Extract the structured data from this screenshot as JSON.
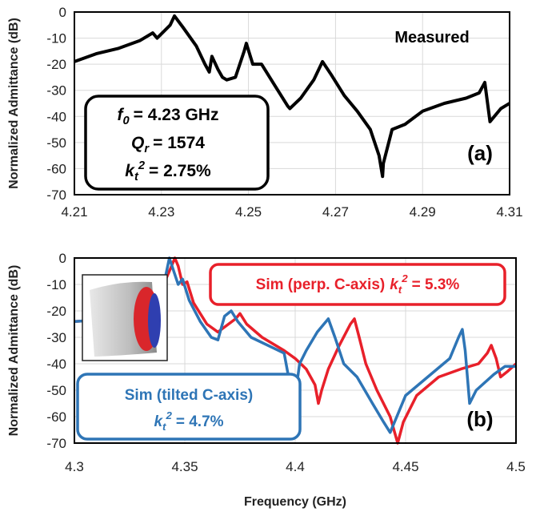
{
  "chart_data": [
    {
      "type": "line",
      "y_label": "Normalized Admittance (dB)",
      "annotations": {
        "measured": "Measured",
        "panel": "(a)",
        "params": [
          {
            "base": "f",
            "sub": "0",
            "value": "= 4.23 GHz"
          },
          {
            "base": "Q",
            "sub": "r",
            "value": "= 1574"
          },
          {
            "base": "k",
            "sub": "t",
            "sup": "2",
            "value": "= 2.75%"
          }
        ]
      },
      "color": "#000000",
      "x": [
        4.21,
        4.215,
        4.22,
        4.225,
        4.228,
        4.229,
        4.232,
        4.233,
        4.235,
        4.238,
        4.24,
        4.241,
        4.2416,
        4.243,
        4.244,
        4.245,
        4.247,
        4.249,
        4.2495,
        4.251,
        4.253,
        4.256,
        4.259,
        4.2595,
        4.262,
        4.265,
        4.267,
        4.269,
        4.272,
        4.275,
        4.278,
        4.28,
        4.2808,
        4.281,
        4.283,
        4.286,
        4.29,
        4.295,
        4.3,
        4.303,
        4.3043,
        4.3055,
        4.308,
        4.31
      ],
      "values": [
        -19,
        -16,
        -14,
        -11,
        -8,
        -10,
        -5,
        -1.5,
        -6,
        -13,
        -20,
        -23,
        -17,
        -22,
        -25,
        -26,
        -25,
        -15,
        -12,
        -20,
        -20,
        -28,
        -36,
        -37,
        -33,
        -26,
        -19,
        -24,
        -32,
        -38,
        -45,
        -55,
        -63,
        -58,
        -45,
        -43,
        -38,
        -35,
        -33,
        -31,
        -27,
        -42,
        -37,
        -35
      ],
      "xlim": [
        4.21,
        4.31
      ],
      "xticks": [
        4.21,
        4.23,
        4.25,
        4.27,
        4.29,
        4.31
      ],
      "ylim": [
        -70,
        0
      ],
      "yticks": [
        -70,
        -60,
        -50,
        -40,
        -30,
        -20,
        -10,
        0
      ],
      "grid": true
    },
    {
      "type": "line",
      "y_label": "Normalized Admittance (dB)",
      "x_label": "Frequency (GHz)",
      "annotations": {
        "panel": "(b)"
      },
      "series": [
        {
          "name": "Sim (perp. C-axis)",
          "color": "#e8202a",
          "kt2_label": {
            "base": "k",
            "sub": "t",
            "sup": "2",
            "value": "= 5.3%"
          },
          "x": [
            4.3,
            4.32,
            4.335,
            4.343,
            4.3455,
            4.347,
            4.349,
            4.351,
            4.354,
            4.36,
            4.365,
            4.373,
            4.375,
            4.378,
            4.385,
            4.395,
            4.4,
            4.405,
            4.409,
            4.4105,
            4.412,
            4.415,
            4.42,
            4.425,
            4.4268,
            4.429,
            4.432,
            4.437,
            4.443,
            4.4464,
            4.449,
            4.455,
            4.465,
            4.475,
            4.483,
            4.487,
            4.4888,
            4.491,
            4.493,
            4.496,
            4.5
          ],
          "values": [
            -24,
            -23,
            -20,
            -5,
            0,
            -3,
            -10,
            -9,
            -17,
            -25,
            -28,
            -23,
            -21,
            -25,
            -30,
            -35,
            -38,
            -42,
            -48,
            -55,
            -50,
            -42,
            -33,
            -25,
            -23,
            -30,
            -40,
            -50,
            -60,
            -70,
            -62,
            -52,
            -45,
            -42,
            -40,
            -36,
            -33,
            -38,
            -45,
            -43,
            -40
          ]
        },
        {
          "name": "Sim (tilted C-axis)",
          "color": "#2e75b6",
          "kt2_label": {
            "base": "k",
            "sub": "t",
            "sup": "2",
            "value": "= 4.7%"
          },
          "x": [
            4.3,
            4.32,
            4.335,
            4.341,
            4.343,
            4.345,
            4.347,
            4.349,
            4.352,
            4.357,
            4.362,
            4.365,
            4.368,
            4.371,
            4.374,
            4.38,
            4.39,
            4.395,
            4.397,
            4.3985,
            4.4,
            4.402,
            4.405,
            4.41,
            4.415,
            4.418,
            4.422,
            4.428,
            4.435,
            4.44,
            4.443,
            4.446,
            4.45,
            4.46,
            4.47,
            4.474,
            4.4757,
            4.477,
            4.479,
            4.482,
            4.49,
            4.495,
            4.5
          ],
          "values": [
            -24,
            -23,
            -20,
            -8,
            0,
            -5,
            -10,
            -8,
            -16,
            -24,
            -30,
            -31,
            -22,
            -20,
            -24,
            -30,
            -34,
            -36,
            -45,
            -58,
            -52,
            -40,
            -35,
            -28,
            -23,
            -30,
            -40,
            -45,
            -55,
            -62,
            -66,
            -60,
            -52,
            -45,
            -38,
            -30,
            -27,
            -35,
            -55,
            -50,
            -44,
            -41,
            -41
          ]
        }
      ],
      "xlim": [
        4.3,
        4.5
      ],
      "xticks": [
        4.3,
        4.35,
        4.4,
        4.45,
        4.5
      ],
      "ylim": [
        -70,
        0
      ],
      "yticks": [
        -70,
        -60,
        -50,
        -40,
        -30,
        -20,
        -10,
        0
      ],
      "grid": true
    }
  ]
}
